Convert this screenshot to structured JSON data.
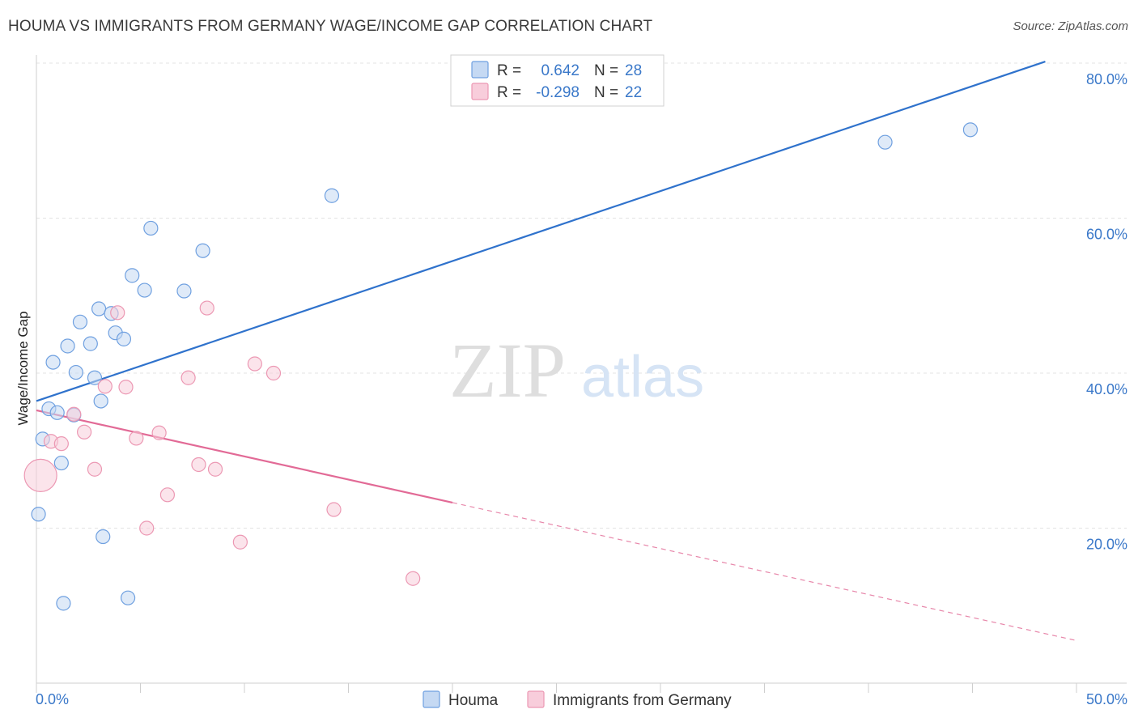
{
  "chart_data": {
    "type": "scatter",
    "title": "HOUMA VS IMMIGRANTS FROM GERMANY WAGE/INCOME GAP CORRELATION CHART",
    "source": "Source: ZipAtlas.com",
    "xlabel": "",
    "ylabel": "Wage/Income Gap",
    "xlim": [
      0,
      50
    ],
    "ylim": [
      0,
      80
    ],
    "x_tick_labels": [
      "0.0%",
      "50.0%"
    ],
    "y_ticks": [
      20,
      40,
      60,
      80
    ],
    "y_tick_labels": [
      "20.0%",
      "40.0%",
      "60.0%",
      "80.0%"
    ],
    "watermark": {
      "zip": "ZIP",
      "atlas": "atlas"
    },
    "legend": {
      "r_label": "R =",
      "n_label": "N =",
      "entries": [
        {
          "r": "0.642",
          "n": "28"
        },
        {
          "r": "-0.298",
          "n": "22"
        }
      ]
    },
    "series": [
      {
        "name": "Houma",
        "color": "#6fa0e0",
        "fill": "#c5d9f3",
        "line_color": "#2f72cc",
        "trend": {
          "x0": 0,
          "y0": 36.4,
          "x1": 48.5,
          "y1": 80.2
        },
        "points": [
          {
            "x": 0.1,
            "y": 21.8
          },
          {
            "x": 0.3,
            "y": 31.5
          },
          {
            "x": 0.6,
            "y": 35.4
          },
          {
            "x": 0.8,
            "y": 41.4
          },
          {
            "x": 1.0,
            "y": 34.9
          },
          {
            "x": 1.2,
            "y": 28.4
          },
          {
            "x": 1.3,
            "y": 10.3
          },
          {
            "x": 1.5,
            "y": 43.5
          },
          {
            "x": 1.8,
            "y": 34.6
          },
          {
            "x": 1.9,
            "y": 40.1
          },
          {
            "x": 2.1,
            "y": 46.6
          },
          {
            "x": 2.6,
            "y": 43.8
          },
          {
            "x": 2.8,
            "y": 39.4
          },
          {
            "x": 3.1,
            "y": 36.4
          },
          {
            "x": 3.0,
            "y": 48.3
          },
          {
            "x": 3.2,
            "y": 18.9
          },
          {
            "x": 3.6,
            "y": 47.7
          },
          {
            "x": 3.8,
            "y": 45.2
          },
          {
            "x": 4.2,
            "y": 44.4
          },
          {
            "x": 4.4,
            "y": 11.0
          },
          {
            "x": 4.6,
            "y": 52.6
          },
          {
            "x": 5.2,
            "y": 50.7
          },
          {
            "x": 5.5,
            "y": 58.7
          },
          {
            "x": 7.1,
            "y": 50.6
          },
          {
            "x": 8.0,
            "y": 55.8
          },
          {
            "x": 14.2,
            "y": 62.9
          },
          {
            "x": 40.8,
            "y": 69.8
          },
          {
            "x": 44.9,
            "y": 71.4
          }
        ]
      },
      {
        "name": "Immigrants from Germany",
        "color": "#ec98b3",
        "fill": "#f8cddb",
        "line_color": "#e26a96",
        "trend": {
          "x0": 0,
          "y0": 35.2,
          "x1": 20,
          "y1": 23.3
        },
        "trend_dashed": {
          "x0": 20,
          "y0": 23.3,
          "x1": 50,
          "y1": 5.5
        },
        "points": [
          {
            "x": 0.2,
            "y": 26.8,
            "big": true
          },
          {
            "x": 0.7,
            "y": 31.2
          },
          {
            "x": 1.2,
            "y": 30.9
          },
          {
            "x": 1.8,
            "y": 34.7
          },
          {
            "x": 2.3,
            "y": 32.4
          },
          {
            "x": 2.8,
            "y": 27.6
          },
          {
            "x": 3.3,
            "y": 38.3
          },
          {
            "x": 3.9,
            "y": 47.8
          },
          {
            "x": 4.3,
            "y": 38.2
          },
          {
            "x": 4.8,
            "y": 31.6
          },
          {
            "x": 5.3,
            "y": 20.0
          },
          {
            "x": 5.9,
            "y": 32.3
          },
          {
            "x": 6.3,
            "y": 24.3
          },
          {
            "x": 7.3,
            "y": 39.4
          },
          {
            "x": 7.8,
            "y": 28.2
          },
          {
            "x": 8.2,
            "y": 48.4
          },
          {
            "x": 8.6,
            "y": 27.6
          },
          {
            "x": 9.8,
            "y": 18.2
          },
          {
            "x": 10.5,
            "y": 41.2
          },
          {
            "x": 11.4,
            "y": 40.0
          },
          {
            "x": 14.3,
            "y": 22.4
          },
          {
            "x": 18.1,
            "y": 13.5
          }
        ]
      }
    ]
  }
}
